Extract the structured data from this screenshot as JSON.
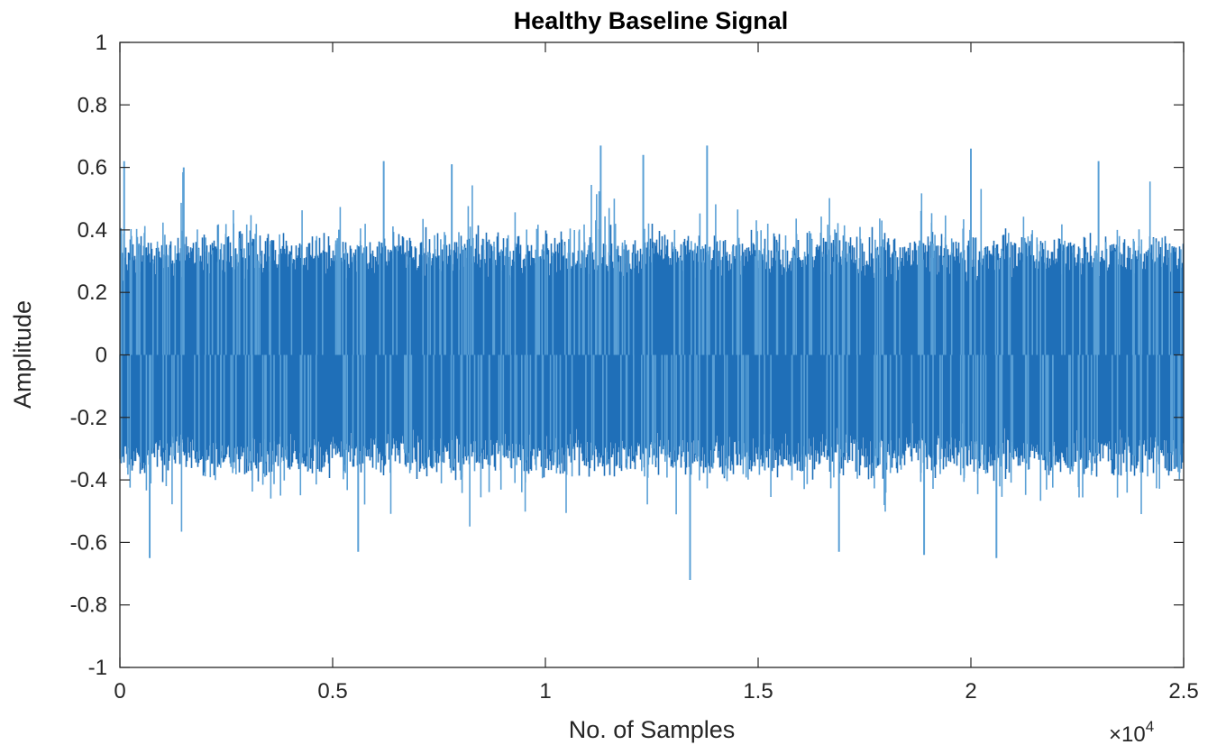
{
  "chart_data": {
    "type": "line",
    "title": "Healthy Baseline Signal",
    "xlabel": "No. of Samples",
    "ylabel": "Amplitude",
    "xlim": [
      0,
      25000
    ],
    "ylim": [
      -1,
      1
    ],
    "x_ticks": [
      0,
      5000,
      10000,
      15000,
      20000,
      25000
    ],
    "x_tick_labels": [
      "0",
      "0.5",
      "1",
      "1.5",
      "2",
      "2.5"
    ],
    "x_exponent_base": "×10",
    "x_exponent_power": "4",
    "y_ticks": [
      -1,
      -0.8,
      -0.6,
      -0.4,
      -0.2,
      0,
      0.2,
      0.4,
      0.6,
      0.8,
      1
    ],
    "y_tick_labels": [
      "-1",
      "-0.8",
      "-0.6",
      "-0.4",
      "-0.2",
      "0",
      "0.2",
      "0.4",
      "0.6",
      "0.8",
      "1"
    ],
    "grid": false,
    "series": [
      {
        "name": "Healthy Baseline Signal",
        "color": "#1f6fb8",
        "spike_color": "#5aa0d6",
        "num_samples": 25000,
        "mean": 0.0,
        "typical_envelope": [
          -0.35,
          0.35
        ],
        "notable_peaks": [
          {
            "x": 100,
            "y": 0.62
          },
          {
            "x": 1500,
            "y": 0.6
          },
          {
            "x": 6200,
            "y": 0.62
          },
          {
            "x": 7800,
            "y": 0.61
          },
          {
            "x": 11300,
            "y": 0.67
          },
          {
            "x": 12300,
            "y": 0.64
          },
          {
            "x": 13800,
            "y": 0.67
          },
          {
            "x": 20000,
            "y": 0.66
          },
          {
            "x": 23000,
            "y": 0.62
          }
        ],
        "notable_troughs": [
          {
            "x": 700,
            "y": -0.65
          },
          {
            "x": 5600,
            "y": -0.63
          },
          {
            "x": 13400,
            "y": -0.72
          },
          {
            "x": 16900,
            "y": -0.63
          },
          {
            "x": 18900,
            "y": -0.64
          },
          {
            "x": 20600,
            "y": -0.65
          }
        ]
      }
    ]
  }
}
